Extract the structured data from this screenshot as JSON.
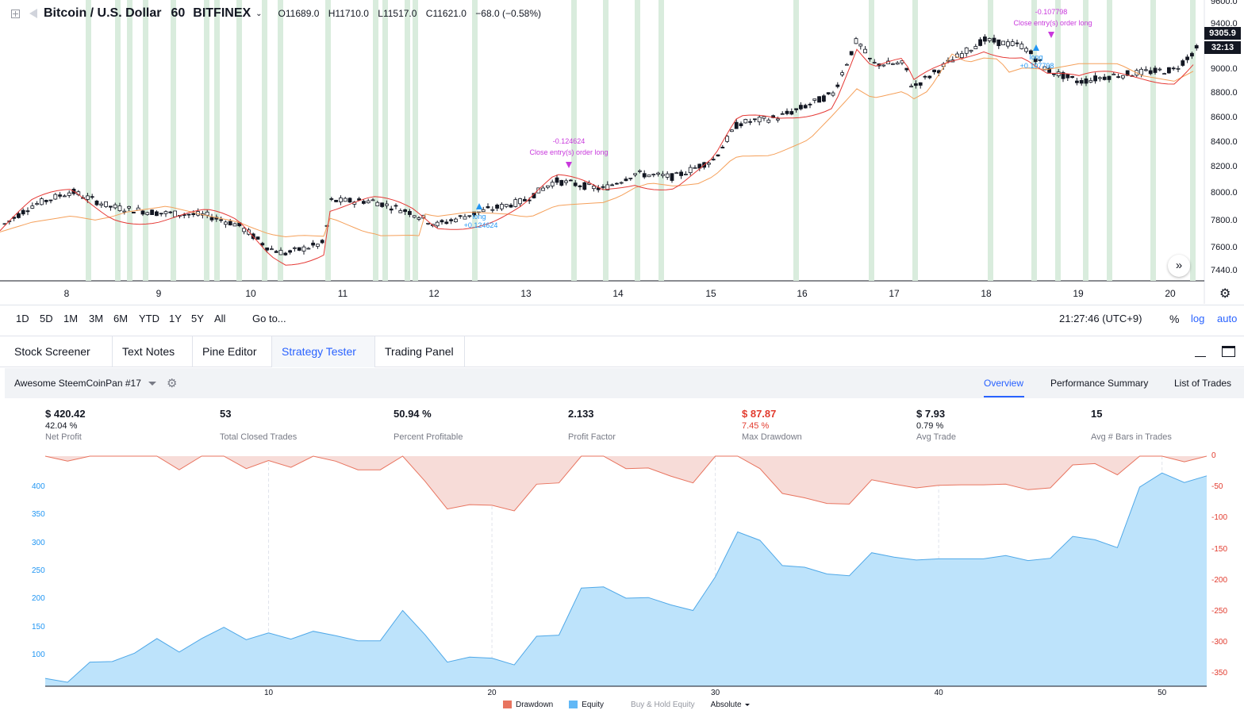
{
  "header": {
    "symbol": "Bitcoin / U.S. Dollar",
    "interval": "60",
    "exchange": "BITFINEX",
    "open_label": "O",
    "open": "11689.0",
    "high_label": "H",
    "high": "11710.0",
    "low_label": "L",
    "low": "11517.0",
    "close_label": "C",
    "close": "11621.0",
    "change": "−68.0 (−0.58%)"
  },
  "price_scale": {
    "ticks": [
      "9600.0",
      "9400.0",
      "9200.0",
      "9000.0",
      "8800.0",
      "8600.0",
      "8400.0",
      "8200.0",
      "8000.0",
      "7800.0",
      "7600.0",
      "7440.0"
    ],
    "last_price": "9305.9",
    "countdown": "32:13"
  },
  "time_scale": {
    "ticks": [
      "8",
      "9",
      "10",
      "11",
      "12",
      "13",
      "14",
      "15",
      "16",
      "17",
      "18",
      "19",
      "20"
    ]
  },
  "trades_annotations": {
    "entry1_label": "long",
    "entry1_value": "+0.124624",
    "exit1_value": "-0.124624",
    "exit1_label": "Close entry(s) order long",
    "entry2_label": "long",
    "entry2_value": "+0.107798",
    "exit2_value": "-0.107798",
    "exit2_label": "Close entry(s) order long"
  },
  "range_bar": {
    "buttons": [
      "1D",
      "5D",
      "1M",
      "3M",
      "6M",
      "YTD",
      "1Y",
      "5Y",
      "All"
    ],
    "goto": "Go to...",
    "time": "21:27:46 (UTC+9)",
    "percent": "%",
    "log": "log",
    "auto": "auto"
  },
  "panel_tabs": [
    "Stock Screener",
    "Text Notes",
    "Pine Editor",
    "Strategy Tester",
    "Trading Panel"
  ],
  "strategy": {
    "name": "Awesome SteemCoinPan #17",
    "tabs": [
      "Overview",
      "Performance Summary",
      "List of Trades"
    ]
  },
  "stats": [
    {
      "value": "$ 420.42",
      "sub": "42.04 %",
      "label": "Net Profit"
    },
    {
      "value": "53",
      "sub": "",
      "label": "Total Closed Trades"
    },
    {
      "value": "50.94 %",
      "sub": "",
      "label": "Percent Profitable"
    },
    {
      "value": "2.133",
      "sub": "",
      "label": "Profit Factor"
    },
    {
      "value": "$ 87.87",
      "sub": "7.45 %",
      "label": "Max Drawdown"
    },
    {
      "value": "$ 7.93",
      "sub": "0.79 %",
      "label": "Avg Trade"
    },
    {
      "value": "15",
      "sub": "",
      "label": "Avg # Bars in Trades"
    }
  ],
  "colors": {
    "accent": "#2962ff",
    "drawdown": "#e23b2e",
    "equity": "#2196f3",
    "equity_fill": "#bde3fb",
    "drawdown_fill": "#f7dcd8",
    "band": "#d9ecdd"
  },
  "chart_data": [
    {
      "type": "area",
      "x": [
        0,
        1,
        2,
        3,
        4,
        5,
        6,
        7,
        8,
        9,
        10,
        11,
        12,
        13,
        14,
        15,
        16,
        17,
        18,
        19,
        20,
        21,
        22,
        23,
        24,
        25,
        26,
        27,
        28,
        29,
        30,
        31,
        32,
        33,
        34,
        35,
        36,
        37,
        38,
        39,
        40,
        41,
        42,
        43,
        44,
        45,
        46,
        47,
        48,
        49,
        50,
        51,
        52
      ],
      "series": [
        {
          "name": "Equity",
          "values": [
            59,
            52,
            88,
            89,
            104,
            130,
            106,
            130,
            150,
            128,
            140,
            129,
            143,
            135,
            126,
            126,
            180,
            137,
            88,
            97,
            95,
            83,
            134,
            136,
            220,
            222,
            202,
            203,
            190,
            180,
            240,
            320,
            305,
            260,
            257,
            245,
            242,
            283,
            275,
            270,
            272,
            272,
            272,
            278,
            269,
            273,
            312,
            306,
            292,
            400,
            425,
            408,
            420
          ]
        },
        {
          "name": "Drawdown",
          "values": [
            0,
            -8,
            0,
            0,
            0,
            0,
            -22,
            0,
            0,
            -20,
            -7,
            -18,
            0,
            -8,
            -22,
            -22,
            0,
            -40,
            -85,
            -78,
            -79,
            -88,
            -45,
            -43,
            0,
            0,
            -20,
            -19,
            -32,
            -43,
            0,
            0,
            -20,
            -60,
            -67,
            -76,
            -77,
            -38,
            -45,
            -51,
            -47,
            -46,
            -46,
            -45,
            -54,
            -51,
            -14,
            -12,
            -30,
            0,
            0,
            -9,
            0
          ]
        }
      ],
      "xticks": [
        "10",
        "20",
        "30",
        "40",
        "50"
      ],
      "y_left_ticks": [
        "400",
        "350",
        "300",
        "250",
        "200",
        "150",
        "100"
      ],
      "y_right_ticks": [
        "0",
        "-50",
        "-100",
        "-150",
        "-200",
        "-250",
        "-300",
        "-350"
      ],
      "legend": [
        "Drawdown",
        "Equity",
        "Buy & Hold Equity",
        "Absolute"
      ]
    }
  ]
}
